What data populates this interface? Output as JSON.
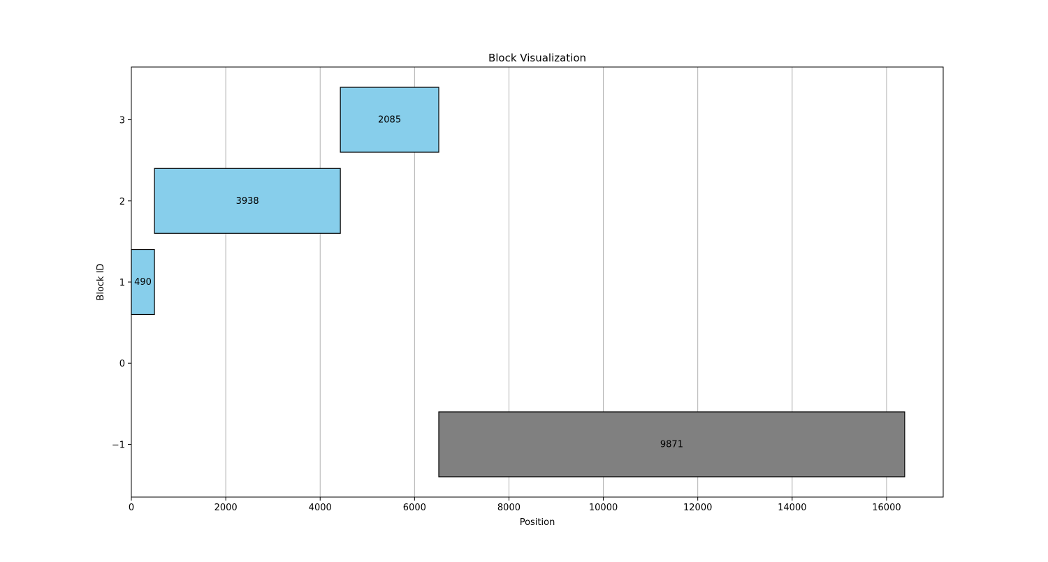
{
  "chart_data": {
    "type": "bar",
    "orientation": "horizontal",
    "title": "Block Visualization",
    "xlabel": "Position",
    "ylabel": "Block ID",
    "xlim": [
      0,
      17200
    ],
    "ylim": [
      -1.65,
      3.65
    ],
    "xticks": [
      0,
      2000,
      4000,
      6000,
      8000,
      10000,
      12000,
      14000,
      16000
    ],
    "xtick_labels": [
      "0",
      "2000",
      "4000",
      "6000",
      "8000",
      "10000",
      "12000",
      "14000",
      "16000"
    ],
    "yticks": [
      -1,
      0,
      1,
      2,
      3
    ],
    "ytick_labels": [
      "−1",
      "0",
      "1",
      "2",
      "3"
    ],
    "grid": {
      "x": true,
      "y": false
    },
    "bar_height": 0.8,
    "bars": [
      {
        "block_id": 1,
        "start": 0,
        "width": 490,
        "label": "490",
        "color": "#87ceeb"
      },
      {
        "block_id": 2,
        "start": 490,
        "width": 3938,
        "label": "3938",
        "color": "#87ceeb"
      },
      {
        "block_id": 3,
        "start": 4428,
        "width": 2085,
        "label": "2085",
        "color": "#87ceeb"
      },
      {
        "block_id": -1,
        "start": 6513,
        "width": 9871,
        "label": "9871",
        "color": "#808080"
      }
    ],
    "colors": {
      "edge": "#000000",
      "grid": "#b0b0b0"
    }
  }
}
